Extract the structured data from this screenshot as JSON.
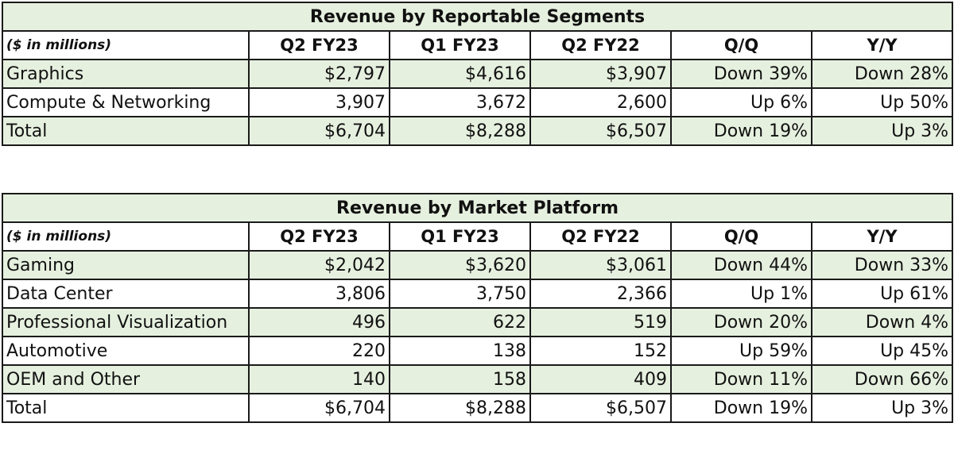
{
  "unit_label": "($ in millions)",
  "columns": [
    "Q2 FY23",
    "Q1 FY23",
    "Q2 FY22",
    "Q/Q",
    "Y/Y"
  ],
  "tables": [
    {
      "title": "Revenue by Reportable Segments",
      "rows": [
        {
          "label": "Graphics",
          "cells": [
            "$2,797",
            "$4,616",
            "$3,907",
            "Down 39%",
            "Down 28%"
          ]
        },
        {
          "label": "Compute & Networking",
          "cells": [
            "3,907",
            "3,672",
            "2,600",
            "Up 6%",
            "Up 50%"
          ]
        },
        {
          "label": "Total",
          "cells": [
            "$6,704",
            "$8,288",
            "$6,507",
            "Down 19%",
            "Up 3%"
          ]
        }
      ]
    },
    {
      "title": "Revenue by Market Platform",
      "rows": [
        {
          "label": "Gaming",
          "cells": [
            "$2,042",
            "$3,620",
            "$3,061",
            "Down 44%",
            "Down 33%"
          ]
        },
        {
          "label": "Data Center",
          "cells": [
            "3,806",
            "3,750",
            "2,366",
            "Up 1%",
            "Up 61%"
          ]
        },
        {
          "label": "Professional Visualization",
          "cells": [
            "496",
            "622",
            "519",
            "Down 20%",
            "Down 4%"
          ]
        },
        {
          "label": "Automotive",
          "cells": [
            "220",
            "138",
            "152",
            "Up 59%",
            "Up 45%"
          ]
        },
        {
          "label": "OEM and Other",
          "cells": [
            "140",
            "158",
            "409",
            "Down 11%",
            "Down 66%"
          ]
        },
        {
          "label": "Total",
          "cells": [
            "$6,704",
            "$8,288",
            "$6,507",
            "Down 19%",
            "Up 3%"
          ]
        }
      ]
    }
  ]
}
